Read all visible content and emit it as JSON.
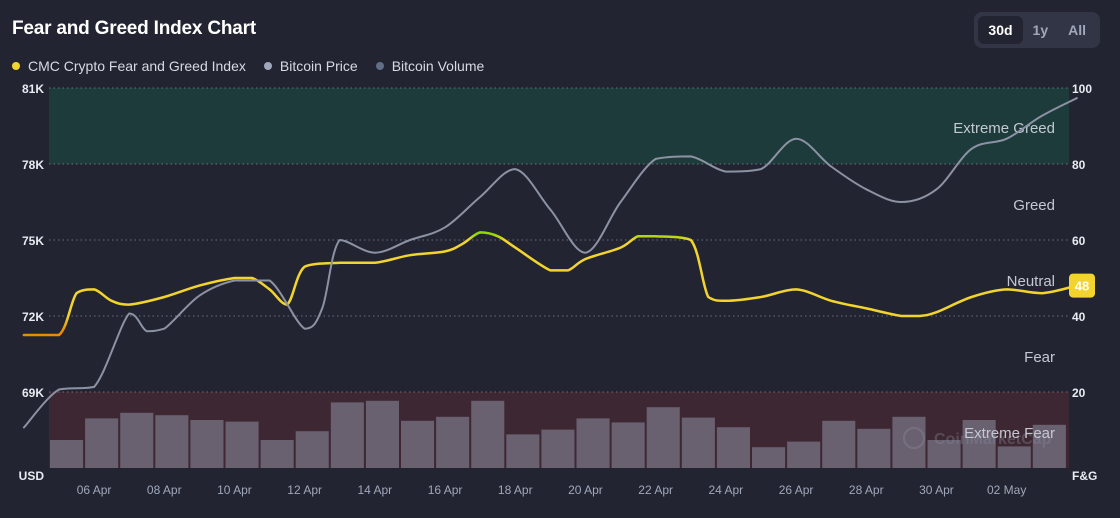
{
  "header": {
    "title": "Fear and Greed Index Chart",
    "range_tabs": [
      {
        "label": "30d",
        "active": true
      },
      {
        "label": "1y",
        "active": false
      },
      {
        "label": "All",
        "active": false
      }
    ]
  },
  "legend": [
    {
      "label": "CMC Crypto Fear and Greed Index",
      "color": "#f3d42f"
    },
    {
      "label": "Bitcoin Price",
      "color": "#a1a7bb"
    },
    {
      "label": "Bitcoin Volume",
      "color": "#616e85"
    }
  ],
  "watermark": "CoinMarketCap",
  "current_badge": {
    "value": "48",
    "color": "#f3d42f"
  },
  "colors": {
    "background": "#222531",
    "greed_line": "#f3d42f",
    "fear_line": "#ea8c00",
    "extreme_greed_line": "#93d900",
    "price_line": "#8c92a3",
    "volume_bars": "#6b6374",
    "extreme_greed_band": "#1c3b3a",
    "extreme_fear_band": "#3d2732"
  },
  "chart_data": {
    "type": "line",
    "left_axis": {
      "label": "USD",
      "ticks": [
        "69K",
        "72K",
        "75K",
        "78K",
        "81K"
      ],
      "values": [
        69000,
        72000,
        75000,
        78000,
        81000
      ],
      "range": [
        66000,
        81000
      ]
    },
    "right_axis": {
      "label": "F&G",
      "ticks": [
        "20",
        "40",
        "60",
        "80",
        "100"
      ],
      "values": [
        20,
        40,
        60,
        80,
        100
      ],
      "range": [
        0,
        100
      ]
    },
    "x_ticks": [
      "06 Apr",
      "08 Apr",
      "10 Apr",
      "12 Apr",
      "14 Apr",
      "16 Apr",
      "18 Apr",
      "20 Apr",
      "22 Apr",
      "24 Apr",
      "26 Apr",
      "28 Apr",
      "30 Apr",
      "02 May"
    ],
    "x_tick_days": [
      2,
      4,
      6,
      8,
      10,
      12,
      14,
      16,
      18,
      20,
      22,
      24,
      26,
      28
    ],
    "zones": [
      {
        "label": "Extreme Greed",
        "from": 80,
        "to": 100
      },
      {
        "label": "Greed",
        "from": 60,
        "to": 80
      },
      {
        "label": "Neutral",
        "from": 40,
        "to": 60
      },
      {
        "label": "Fear",
        "from": 20,
        "to": 40
      },
      {
        "label": "Extreme Fear",
        "from": 0,
        "to": 20
      }
    ],
    "series": [
      {
        "name": "CMC Crypto Fear and Greed Index",
        "axis": "right",
        "points": [
          [
            0,
            35
          ],
          [
            1,
            35
          ],
          [
            1.5,
            46
          ],
          [
            2,
            47
          ],
          [
            2.5,
            44
          ],
          [
            3,
            43
          ],
          [
            4,
            45
          ],
          [
            5,
            48
          ],
          [
            6,
            50
          ],
          [
            6.5,
            50
          ],
          [
            7,
            47
          ],
          [
            7.5,
            43
          ],
          [
            8,
            53
          ],
          [
            9,
            54
          ],
          [
            10,
            54
          ],
          [
            11,
            56
          ],
          [
            12,
            57
          ],
          [
            12.5,
            59
          ],
          [
            13,
            62
          ],
          [
            13.5,
            61
          ],
          [
            14,
            58
          ],
          [
            15,
            52
          ],
          [
            15.5,
            52
          ],
          [
            16,
            55
          ],
          [
            17,
            58
          ],
          [
            17.5,
            61
          ],
          [
            18,
            61
          ],
          [
            19,
            60
          ],
          [
            19.5,
            45
          ],
          [
            20,
            44
          ],
          [
            21,
            45
          ],
          [
            22,
            47
          ],
          [
            23,
            44
          ],
          [
            24,
            42
          ],
          [
            25,
            40
          ],
          [
            25.5,
            40
          ],
          [
            26,
            41
          ],
          [
            27,
            45
          ],
          [
            28,
            47
          ],
          [
            29,
            46
          ],
          [
            30,
            48
          ]
        ]
      },
      {
        "name": "Bitcoin Price",
        "axis": "left",
        "points": [
          [
            0,
            67600
          ],
          [
            1,
            69100
          ],
          [
            2,
            69200
          ],
          [
            3,
            72100
          ],
          [
            3.5,
            71400
          ],
          [
            4,
            71500
          ],
          [
            5,
            72800
          ],
          [
            6,
            73400
          ],
          [
            7,
            73400
          ],
          [
            8,
            71500
          ],
          [
            8.5,
            72300
          ],
          [
            9,
            75000
          ],
          [
            10,
            74500
          ],
          [
            11,
            75000
          ],
          [
            12,
            75500
          ],
          [
            13,
            76700
          ],
          [
            14,
            77800
          ],
          [
            15,
            76200
          ],
          [
            16,
            74500
          ],
          [
            17,
            76500
          ],
          [
            18,
            78200
          ],
          [
            19,
            78300
          ],
          [
            20,
            77700
          ],
          [
            21,
            77800
          ],
          [
            22,
            79000
          ],
          [
            23,
            77900
          ],
          [
            24,
            77000
          ],
          [
            25,
            76500
          ],
          [
            26,
            77000
          ],
          [
            27,
            78600
          ],
          [
            28,
            79000
          ],
          [
            29,
            79900
          ],
          [
            30,
            80600
          ]
        ]
      }
    ],
    "volume": {
      "name": "Bitcoin Volume",
      "values": [
        0.35,
        0.62,
        0.69,
        0.66,
        0.6,
        0.58,
        0.35,
        0.46,
        0.82,
        0.84,
        0.59,
        0.64,
        0.84,
        0.42,
        0.48,
        0.62,
        0.57,
        0.76,
        0.63,
        0.51,
        0.26,
        0.33,
        0.59,
        0.49,
        0.64,
        0.35,
        0.6,
        0.27,
        0.54
      ]
    }
  }
}
